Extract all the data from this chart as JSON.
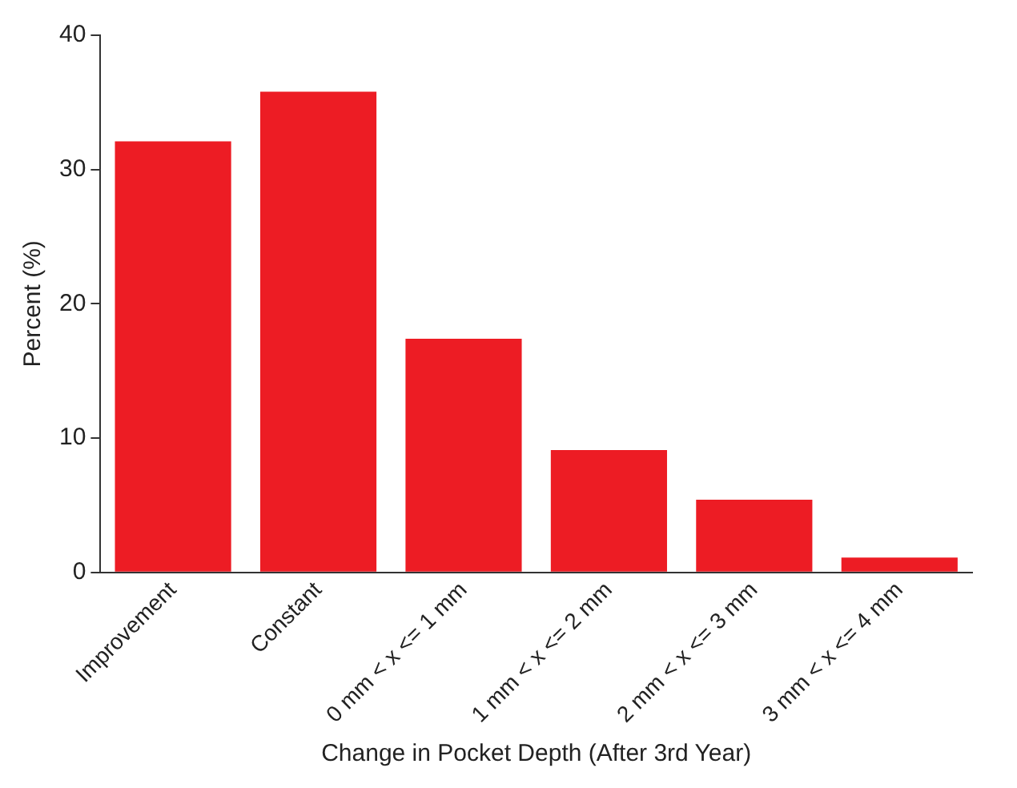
{
  "chart_data": {
    "type": "bar",
    "xlabel": "Change in Pocket Depth (After 3rd Year)",
    "ylabel": "Percent (%)",
    "categories": [
      "Improvement",
      "Constant",
      "0 mm < x <= 1 mm",
      "1 mm < x <= 2 mm",
      "2 mm < x <= 3 mm",
      "3 mm < x <= 4 mm"
    ],
    "values": [
      32.1,
      35.8,
      17.4,
      9.1,
      5.4,
      1.1
    ],
    "color": "#ed1c24",
    "ylim": [
      0,
      40
    ],
    "yticks": [
      0,
      10,
      20,
      30,
      40
    ],
    "grid": false,
    "legend": false
  }
}
